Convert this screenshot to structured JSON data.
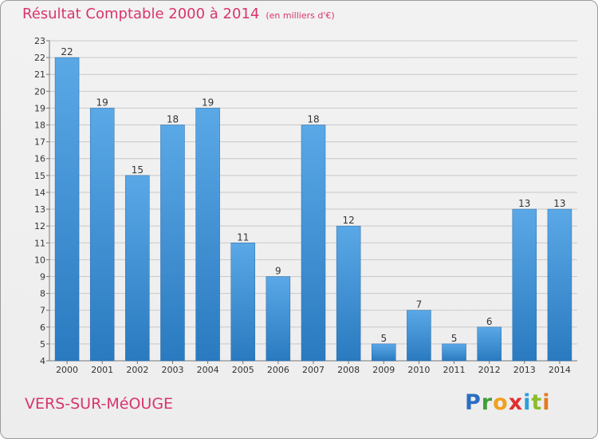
{
  "header": {
    "title": "Résultat Comptable 2000 à 2014",
    "units": "(en milliers d'€)"
  },
  "footer": {
    "commune": "VERS-SUR-MéOUGE",
    "logo_letters": [
      "P",
      "r",
      "o",
      "x",
      "i",
      "t",
      "i"
    ],
    "logo_colors": [
      "#2b6fc0",
      "#3f9f3a",
      "#f0a020",
      "#e0302e",
      "#2b9fd8",
      "#8bbd2c",
      "#e07a20"
    ]
  },
  "colors": {
    "bar_top": "#5aa8e6",
    "bar_bottom": "#2a7ac0",
    "grid": "#c8c8c8",
    "title": "#d8346e"
  },
  "chart_data": {
    "type": "bar",
    "title": "Résultat Comptable 2000 à 2014",
    "xlabel": "",
    "ylabel": "",
    "categories": [
      "2000",
      "2001",
      "2002",
      "2003",
      "2004",
      "2005",
      "2006",
      "2007",
      "2008",
      "2009",
      "2010",
      "2011",
      "2012",
      "2013",
      "2014"
    ],
    "values": [
      22,
      19,
      15,
      18,
      19,
      11,
      9,
      18,
      12,
      5,
      7,
      5,
      6,
      13,
      13
    ],
    "ylim": [
      4,
      23
    ],
    "yticks": [
      4,
      5,
      6,
      7,
      8,
      9,
      10,
      11,
      12,
      13,
      14,
      15,
      16,
      17,
      18,
      19,
      20,
      21,
      22,
      23
    ],
    "grid": true
  }
}
